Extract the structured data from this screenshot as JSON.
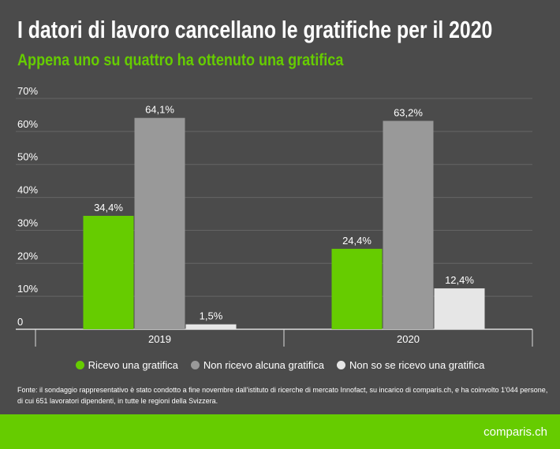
{
  "title": "I datori di lavoro cancellano le gratifiche per il 2020",
  "subtitle": "Appena uno su quattro ha ottenuto una gratifica",
  "chart_data": {
    "type": "bar",
    "categories": [
      "2019",
      "2020"
    ],
    "series": [
      {
        "name": "Ricevo una gratifica",
        "values": [
          34.4,
          24.4
        ],
        "labels": [
          "34,4%",
          "24,4%"
        ],
        "color": "#66cc00"
      },
      {
        "name": "Non ricevo alcuna gratifica",
        "values": [
          64.1,
          63.2
        ],
        "labels": [
          "64,1%",
          "63,2%"
        ],
        "color": "#999999"
      },
      {
        "name": "Non so se ricevo una gratifica",
        "values": [
          1.5,
          12.4
        ],
        "labels": [
          "1,5%",
          "12,4%"
        ],
        "color": "#e6e6e6"
      }
    ],
    "yticks": [
      "0",
      "10%",
      "20%",
      "30%",
      "40%",
      "50%",
      "60%",
      "70%"
    ],
    "ylim": [
      0,
      70
    ],
    "grid": true,
    "legend": "bottom"
  },
  "source": "Fonte: il sondaggio rappresentativo è stato condotto a fine novembre dall'istituto di ricerche di mercato Innofact, su incarico di comparis.ch, e ha coinvolto 1'044 persone, di cui 651 lavoratori dipendenti, in tutte le regioni della Svizzera.",
  "logo": "comparis.ch"
}
